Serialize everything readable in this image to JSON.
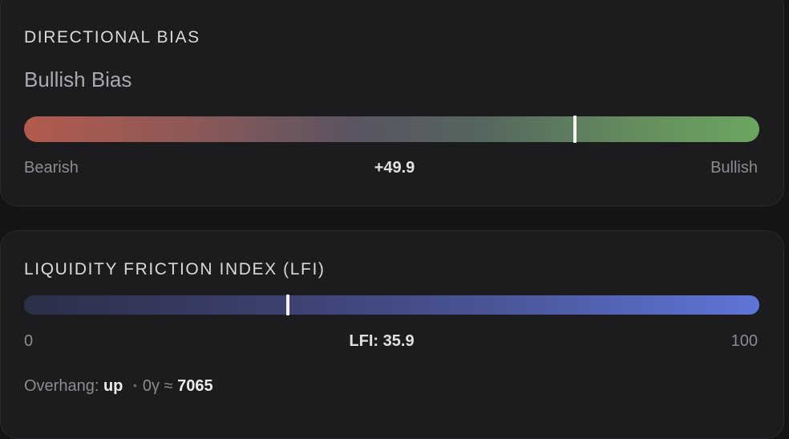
{
  "directional_bias": {
    "title": "DIRECTIONAL BIAS",
    "subtitle": "Bullish Bias",
    "left_label": "Bearish",
    "right_label": "Bullish",
    "value_label": "+49.9",
    "marker_fraction": 0.7495,
    "colors": {
      "bearish": "#b35a4d",
      "bullish": "#6aa65f"
    }
  },
  "lfi": {
    "title": "LIQUIDITY FRICTION INDEX (LFI)",
    "min_label": "0",
    "max_label": "100",
    "value_label": "LFI: 35.9",
    "marker_fraction": 0.359,
    "overhang_label": "Overhang:",
    "overhang_value": "up",
    "separator": "•",
    "gamma_label": "0γ ≈",
    "gamma_value": "7065",
    "colors": {
      "low": "#2c2f48",
      "high": "#5f75d8"
    }
  }
}
